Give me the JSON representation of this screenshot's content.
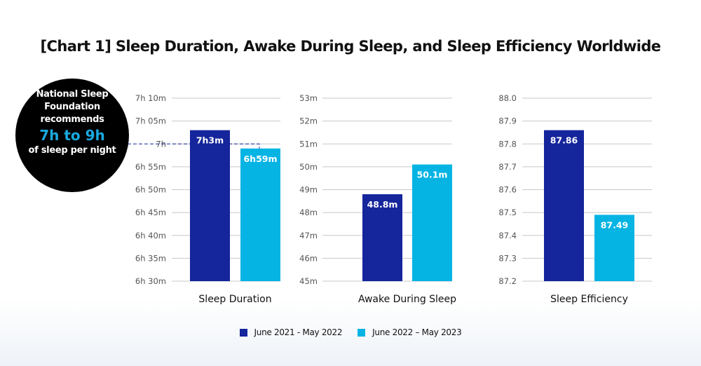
{
  "title": "[Chart 1] Sleep Duration, Awake During Sleep, and Sleep Efficiency Worldwide",
  "callout": {
    "lines": [
      "National Sleep",
      "Foundation",
      "recommends"
    ],
    "highlight": "7h to 9h",
    "tail": "of sleep per night"
  },
  "colors": {
    "series1": "#15259b",
    "series2": "#06b4e4",
    "grid": "#c8c8c8",
    "highlight": "#1aa9de",
    "reference_line": "#15259b"
  },
  "legend": [
    {
      "label": "June 2021 - May 2022",
      "color": "#15259b"
    },
    {
      "label": "June 2022 – May 2023",
      "color": "#06b4e4"
    }
  ],
  "chart_data": [
    {
      "type": "bar",
      "xlabel": "Sleep Duration",
      "unit": "minutes",
      "ylim": [
        390,
        430
      ],
      "ticks": [
        390,
        395,
        400,
        405,
        410,
        415,
        420,
        425,
        430
      ],
      "tick_labels": [
        "6h 30m",
        "6h 35m",
        "6h 40m",
        "6h 45m",
        "6h 50m",
        "6h 55m",
        "7h",
        "7h 05m",
        "7h 10m"
      ],
      "series": [
        {
          "name": "June 2021 - May 2022",
          "value": 423,
          "label": "7h3m"
        },
        {
          "name": "June 2022 – May 2023",
          "value": 419,
          "label": "6h59m"
        }
      ],
      "reference_line": 420,
      "grid": true
    },
    {
      "type": "bar",
      "xlabel": "Awake During Sleep",
      "unit": "minutes",
      "ylim": [
        45,
        53
      ],
      "ticks": [
        45,
        46,
        47,
        48,
        49,
        50,
        51,
        52,
        53
      ],
      "tick_labels": [
        "45m",
        "46m",
        "47m",
        "48m",
        "49m",
        "50m",
        "51m",
        "52m",
        "53m"
      ],
      "series": [
        {
          "name": "June 2021 - May 2022",
          "value": 48.8,
          "label": "48.8m"
        },
        {
          "name": "June 2022 – May 2023",
          "value": 50.1,
          "label": "50.1m"
        }
      ],
      "grid": true
    },
    {
      "type": "bar",
      "xlabel": "Sleep Efficiency",
      "ylim": [
        87.2,
        88.0
      ],
      "ticks": [
        87.2,
        87.3,
        87.4,
        87.5,
        87.6,
        87.7,
        87.8,
        87.9,
        88.0
      ],
      "tick_labels": [
        "87.2",
        "87.3",
        "87.4",
        "87.5",
        "87.6",
        "87.7",
        "87.8",
        "87.9",
        "88.0"
      ],
      "series": [
        {
          "name": "June 2021 - May 2022",
          "value": 87.86,
          "label": "87.86"
        },
        {
          "name": "June 2022 – May 2023",
          "value": 87.49,
          "label": "87.49"
        }
      ],
      "grid": true
    }
  ]
}
